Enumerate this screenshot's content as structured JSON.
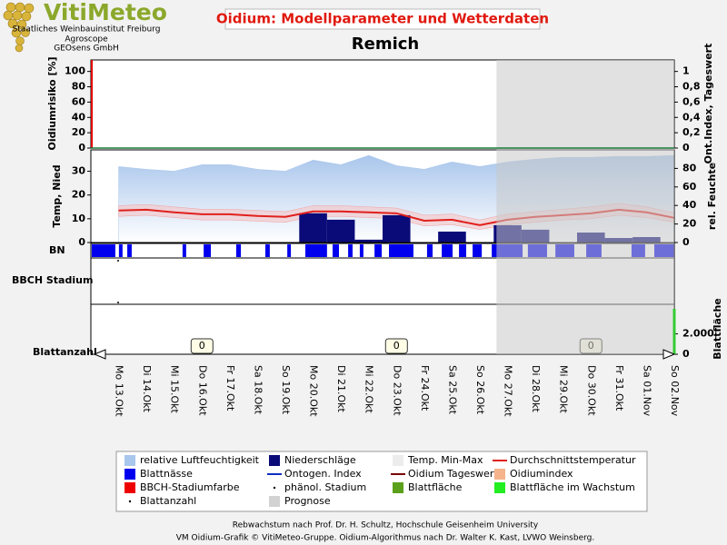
{
  "header": {
    "logo": "VitiMeteo",
    "org_lines": [
      "Staatliches Weinbauinstitut Freiburg",
      "Agroscope",
      "GEOsens GmbH"
    ],
    "title": "Oidium: Modellparameter und Wetterdaten",
    "location": "Remich"
  },
  "chart_data": {
    "type": "panels",
    "categories": [
      "Mo 13.Okt",
      "Di 14.Okt",
      "Mi 15.Okt",
      "Do 16.Okt",
      "Fr 17.Okt",
      "Sa 18.Okt",
      "So 19.Okt",
      "Mo 20.Okt",
      "Di 21.Okt",
      "Mi 22.Okt",
      "Do 23.Okt",
      "Fr 24.Okt",
      "Sa 25.Okt",
      "So 26.Okt",
      "Mo 27.Okt",
      "Di 28.Okt",
      "Mi 29.Okt",
      "Do 30.Okt",
      "Fr 31.Okt",
      "Sa 01.Nov",
      "So 02.Nov"
    ],
    "xlim": [
      -1,
      20
    ],
    "prognosis_from": 13.6,
    "prognosis_color": "#c8c8c8",
    "panels": [
      {
        "type": "line",
        "ylabel": "Oidiumrisiko [%]",
        "ylim": [
          0,
          115
        ],
        "yticks": [
          0,
          20,
          40,
          60,
          80,
          100
        ],
        "y2label": "Ont.Index, Tageswert",
        "y2lim": [
          0,
          1.15
        ],
        "y2ticks": [
          0,
          {
            "value": 0.2,
            "label": "0,2"
          },
          {
            "value": 0.4,
            "label": "0,4"
          },
          {
            "value": 0.6,
            "label": "0,6"
          },
          {
            "value": 0.8,
            "label": "0,8"
          },
          1
        ]
      },
      {
        "type": "combo",
        "ylabel": "Temp, Nied",
        "ylim": [
          0,
          39
        ],
        "yticks": [
          0,
          10,
          20,
          30
        ],
        "y2label": "rel. Feuchte",
        "y2lim": [
          0,
          100
        ],
        "y2ticks": [
          0,
          20,
          40,
          60,
          80
        ],
        "series": [
          {
            "kind": "area",
            "axis": "y2",
            "color": "#a9c6ec",
            "values": [
              82,
              79,
              77,
              84,
              84,
              79,
              77,
              89,
              84,
              94,
              83,
              79,
              87,
              82,
              87,
              90,
              92,
              92,
              93,
              93,
              94
            ]
          },
          {
            "kind": "band",
            "color": "#f6c4c4",
            "low": [
              11,
              11.5,
              10.5,
              9.5,
              9.5,
              9,
              8.5,
              11,
              11,
              10.5,
              10,
              7,
              7.5,
              5.5,
              7.5,
              8.5,
              9.5,
              10,
              11.5,
              10.5,
              8.5
            ],
            "high": [
              15.5,
              16,
              15,
              14,
              14,
              13.5,
              13,
              15.5,
              15.5,
              15,
              14.5,
              11.5,
              12,
              9.5,
              12,
              13,
              14,
              15,
              16.5,
              15,
              12.5
            ]
          },
          {
            "kind": "bar",
            "color": "#0a0a78",
            "values": [
              0,
              0,
              0,
              0,
              0,
              0,
              0,
              12.3,
              9.6,
              1.2,
              11.5,
              0,
              4.6,
              0,
              7.3,
              5.4,
              0,
              4.2,
              1.9,
              2.3,
              0
            ]
          },
          {
            "kind": "line",
            "color": "#e0201c",
            "values": [
              13.5,
              13.8,
              12.7,
              11.9,
              11.9,
              11.2,
              10.8,
              13.1,
              13.1,
              12.7,
              12.3,
              9.2,
              9.6,
              7.3,
              9.6,
              10.8,
              11.5,
              12.3,
              13.8,
              12.7,
              10.4
            ]
          }
        ]
      },
      {
        "type": "intervals",
        "ylabel": "BN",
        "color": "#0000ee",
        "intervals": [
          [
            -0.97,
            -0.12
          ],
          [
            0.01,
            0.14
          ],
          [
            0.31,
            0.47
          ],
          [
            2.3,
            2.43
          ],
          [
            3.06,
            3.32
          ],
          [
            4.23,
            4.4
          ],
          [
            5.28,
            5.44
          ],
          [
            6.07,
            6.2
          ],
          [
            6.72,
            7.5
          ],
          [
            7.7,
            7.93
          ],
          [
            8.26,
            8.42
          ],
          [
            8.68,
            8.81
          ],
          [
            9.21,
            9.47
          ],
          [
            9.73,
            10.61
          ],
          [
            11.1,
            11.3
          ],
          [
            11.63,
            12.02
          ],
          [
            12.25,
            12.51
          ],
          [
            12.74,
            13.07
          ],
          [
            13.43,
            14.54
          ],
          [
            14.73,
            15.42
          ],
          [
            15.72,
            16.4
          ],
          [
            16.83,
            17.38
          ],
          [
            18.46,
            18.95
          ],
          [
            19.28,
            20
          ]
        ]
      },
      {
        "type": "stage",
        "ylabel": "BBCH Stadium"
      },
      {
        "type": "labels",
        "ylabel": "Blattanzahl",
        "y2label": "Blattfläche",
        "y2lim": [
          0,
          4900
        ],
        "y2ticks": [
          0,
          {
            "value": 2000,
            "label": "2.000"
          }
        ],
        "x": [
          3,
          10,
          17
        ],
        "values": [
          0,
          0,
          0
        ]
      }
    ]
  },
  "legend": [
    {
      "label": "relative Luftfeuchtigkeit",
      "color": "#a9c6ec",
      "symbol": "box"
    },
    {
      "label": "Niederschläge",
      "color": "#0a0a78",
      "symbol": "box"
    },
    {
      "label": "Temp. Min-Max",
      "color": "#ececec",
      "symbol": "box"
    },
    {
      "label": "Durchschnittstemperatur",
      "color": "#e0201c",
      "symbol": "line"
    },
    {
      "label": "Blattnässe",
      "color": "#0000ee",
      "symbol": "box"
    },
    {
      "label": "Ontogen. Index",
      "color": "#1030c0",
      "symbol": "line"
    },
    {
      "label": "Oidium Tageswert",
      "color": "#7a0000",
      "symbol": "line"
    },
    {
      "label": "Oidiumindex",
      "color": "#f6b48c",
      "symbol": "box"
    },
    {
      "label": "BBCH-Stadiumfarbe",
      "color": "#ee0000",
      "symbol": "box"
    },
    {
      "label": "phänol. Stadium",
      "color": "#000000",
      "symbol": "dot"
    },
    {
      "label": "Blattfläche",
      "color": "#5aa01a",
      "symbol": "box"
    },
    {
      "label": "Blattfläche im Wachstum",
      "color": "#22ee22",
      "symbol": "box"
    },
    {
      "label": "Blattanzahl",
      "color": "#000000",
      "symbol": "dot"
    },
    {
      "label": "Prognose",
      "color": "#d2d2d2",
      "symbol": "box"
    }
  ],
  "footer": [
    "Rebwachstum nach Prof. Dr. H. Schultz, Hochschule Geisenheim University",
    "VM Oidium-Grafik © VitiMeteo-Gruppe. Oidium-Algorithmus nach Dr. Walter K. Kast, LVWO Weinsberg."
  ]
}
